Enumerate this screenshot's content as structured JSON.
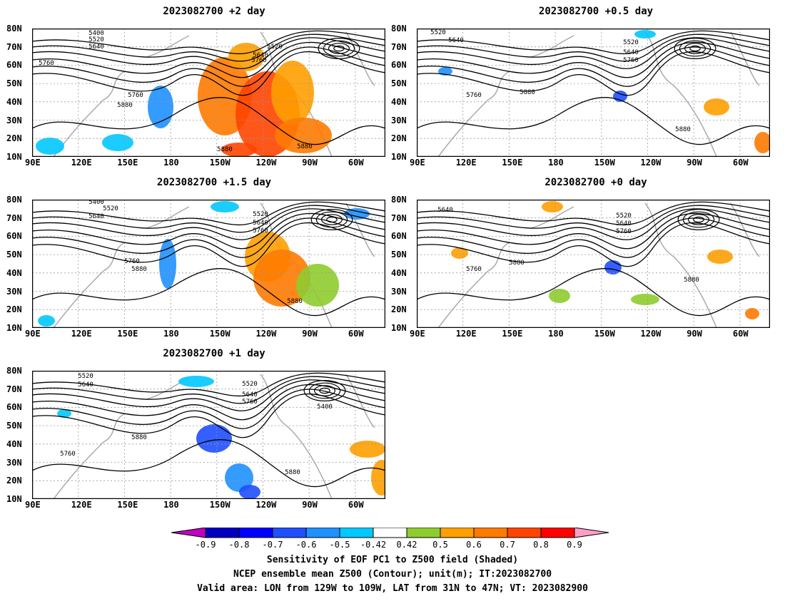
{
  "panels": [
    {
      "title": "2023082700  +2 day"
    },
    {
      "title": "2023082700  +0.5  day"
    },
    {
      "title": "2023082700  +1.5  day"
    },
    {
      "title": "2023082700  +0  day"
    },
    {
      "title": "2023082700  +1  day"
    }
  ],
  "axes": {
    "lat_labels": [
      "80N",
      "70N",
      "60N",
      "50N",
      "40N",
      "30N",
      "20N",
      "10N"
    ],
    "lon_labels": [
      "90E",
      "120E",
      "150E",
      "180",
      "150W",
      "120W",
      "90W",
      "60W"
    ]
  },
  "contour_labels": [
    "5400",
    "5520",
    "5640",
    "5760",
    "5880"
  ],
  "colorbar": {
    "ticks": [
      "-0.9",
      "-0.8",
      "-0.7",
      "-0.6",
      "-0.5",
      "-0.42",
      "0.42",
      "0.5",
      "0.6",
      "0.7",
      "0.8",
      "0.9"
    ],
    "colors": [
      "#c000c0",
      "#0000c0",
      "#0000ff",
      "#1f4fff",
      "#1e90ff",
      "#00c8ff",
      "#ffffff",
      "#8fcc2e",
      "#ff9f00",
      "#ff7a00",
      "#ff4500",
      "#ff0000",
      "#ff9ec8"
    ]
  },
  "caption": {
    "line1": "Sensitivity of EOF PC1 to Z500 field (Shaded)",
    "line2": "NCEP ensemble mean Z500 (Contour); unit(m); IT:2023082700",
    "line3": "Valid area: LON from 129W to 109W, LAT from 31N to 47N; VT: 2023082900"
  }
}
